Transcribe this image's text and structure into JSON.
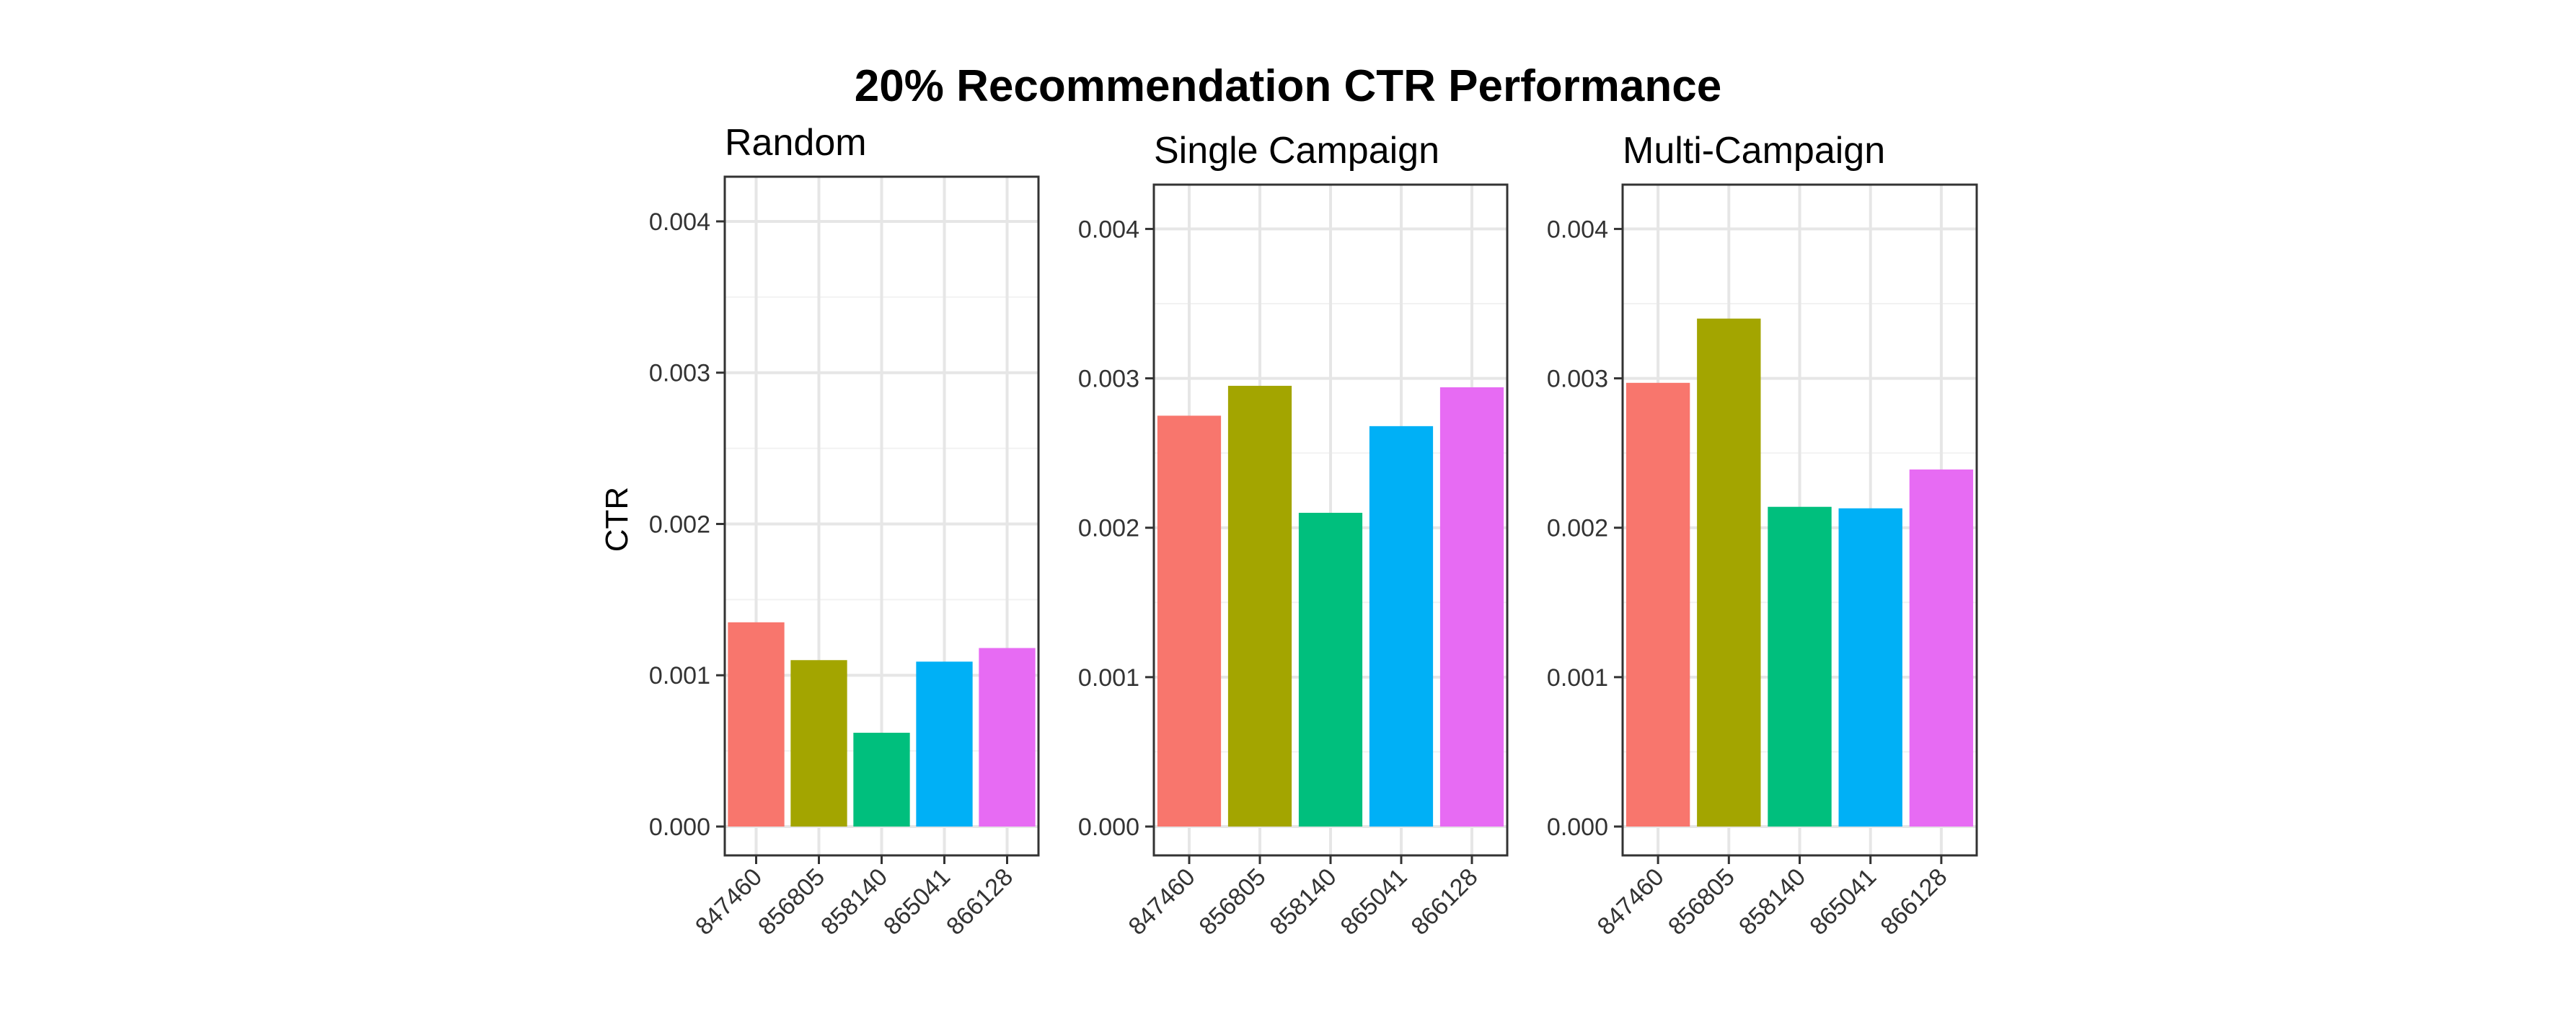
{
  "chart_data": {
    "type": "bar",
    "title": "20% Recommendation CTR Performance",
    "ylabel": "CTR",
    "xlabel": "",
    "categories": [
      "847460",
      "856805",
      "858140",
      "865041",
      "866128"
    ],
    "yticks": [
      "0.000",
      "0.001",
      "0.002",
      "0.003",
      "0.004"
    ],
    "ylim": [
      0,
      0.0042
    ],
    "grid": true,
    "legend": "none",
    "colors": [
      "#F8766D",
      "#A3A500",
      "#00BF7D",
      "#00B0F6",
      "#E76BF3"
    ],
    "panels": [
      {
        "title": "Random",
        "values": [
          0.00135,
          0.0011,
          0.00062,
          0.00109,
          0.00118
        ]
      },
      {
        "title": "Single Campaign",
        "values": [
          0.00275,
          0.00295,
          0.0021,
          0.00268,
          0.00294
        ]
      },
      {
        "title": "Multi-Campaign",
        "values": [
          0.00297,
          0.0034,
          0.00214,
          0.00213,
          0.00239
        ]
      }
    ]
  }
}
